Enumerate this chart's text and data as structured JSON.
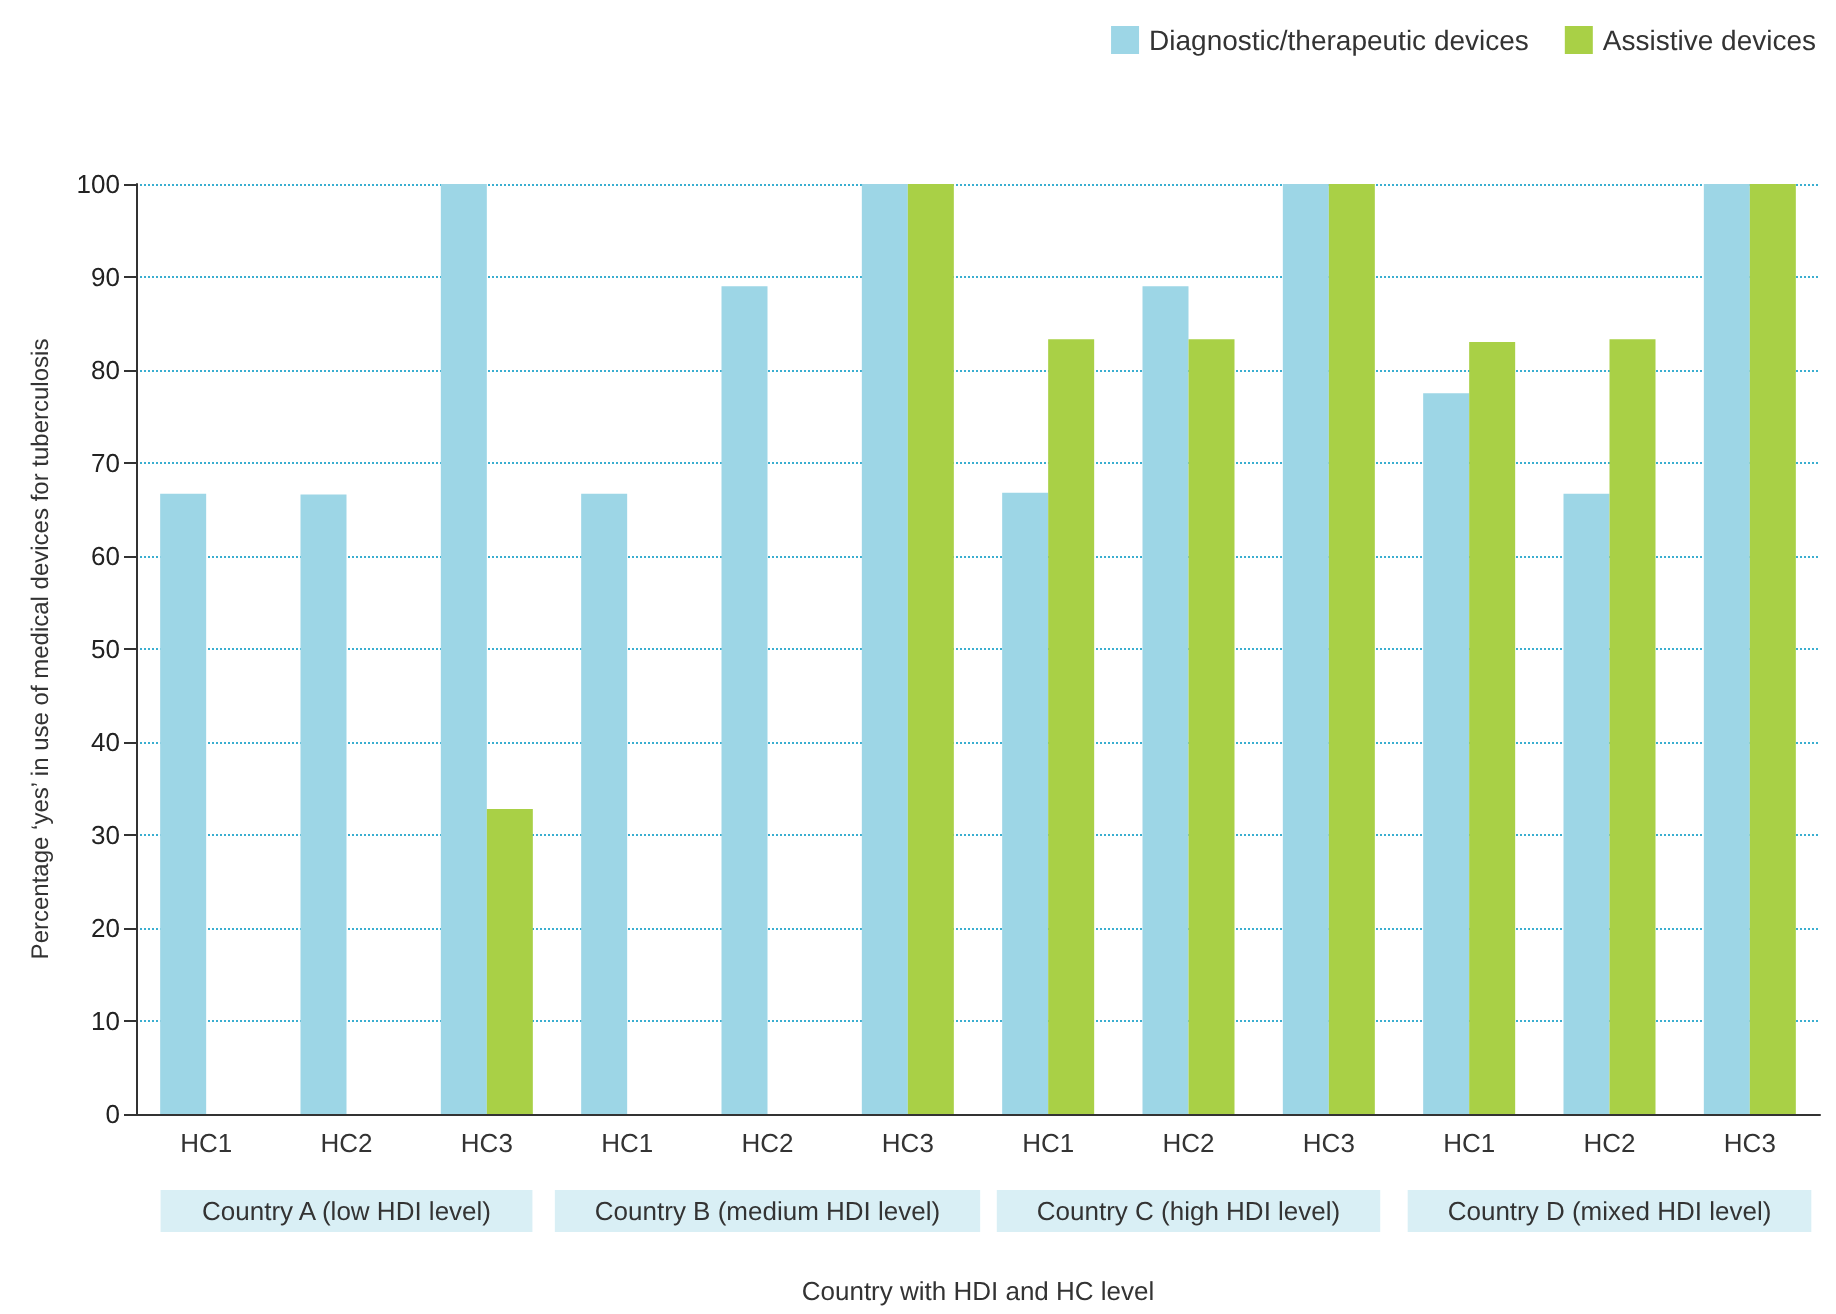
{
  "chart_data": {
    "type": "bar",
    "xlabel": "Country with HDI and HC level",
    "ylabel": "Percentage ‘yes’ in use of medical devices for tuberculosis",
    "categories": [
      "HC1",
      "HC2",
      "HC3",
      "HC1",
      "HC2",
      "HC3",
      "HC1",
      "HC2",
      "HC3",
      "HC1",
      "HC2",
      "HC3"
    ],
    "series": [
      {
        "name": "Diagnostic/therapeutic devices",
        "color": "#9dd6e6",
        "values": [
          66.7,
          66.6,
          100,
          66.7,
          89,
          100,
          66.8,
          89,
          100,
          77.5,
          66.7,
          100
        ]
      },
      {
        "name": "Assistive devices",
        "color": "#a9d046",
        "values": [
          null,
          null,
          32.8,
          null,
          null,
          100,
          83.3,
          83.3,
          100,
          83,
          83.3,
          100
        ]
      }
    ],
    "annotations": [
      "Country A (low HDI level)",
      "Country B (medium HDI level)",
      "Country C (high HDI level)",
      "Country D (mixed HDI level)"
    ],
    "ylim": [
      0,
      100
    ],
    "yticks": [
      0,
      10,
      20,
      30,
      40,
      50,
      60,
      70,
      80,
      90,
      100
    ],
    "grid": "y",
    "legend": "top right"
  }
}
